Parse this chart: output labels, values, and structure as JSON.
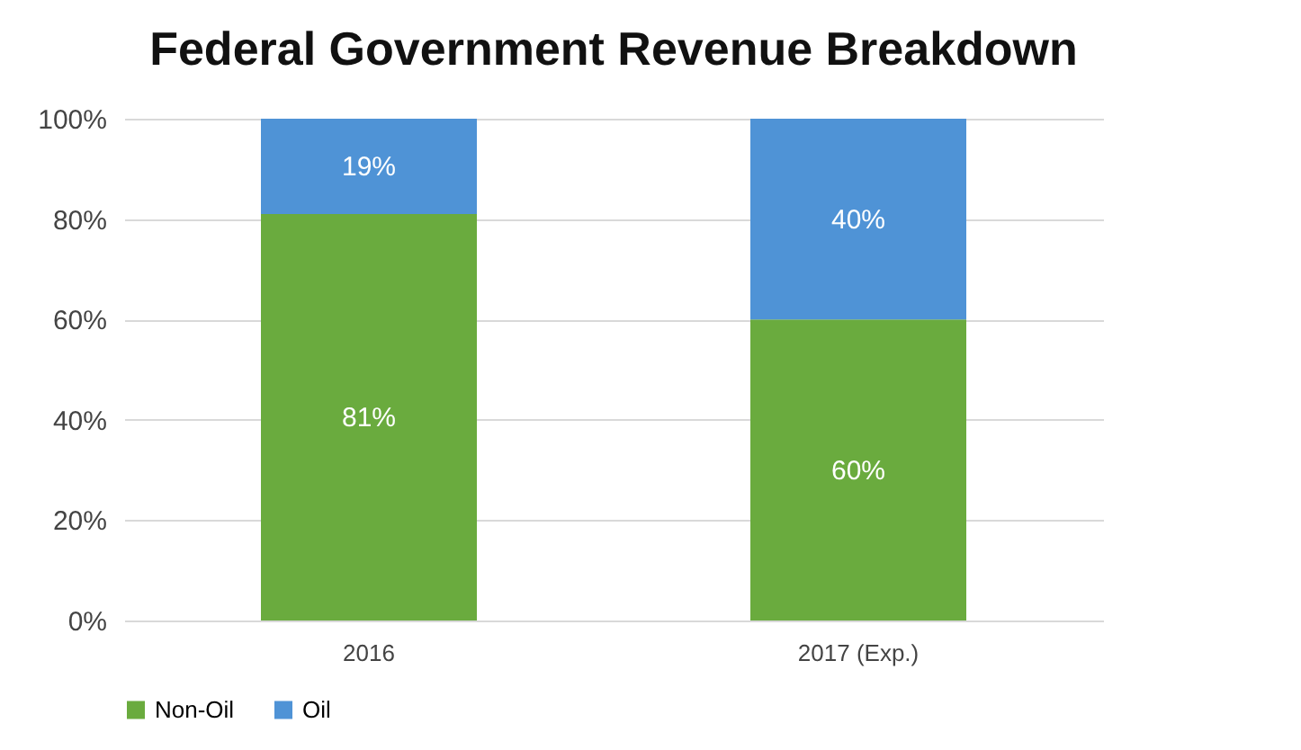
{
  "chart_data": {
    "type": "bar",
    "title": "Federal Government Revenue Breakdown",
    "categories": [
      "2016",
      "2017 (Exp.)"
    ],
    "stacked": true,
    "series": [
      {
        "name": "Non-Oil",
        "color": "#6aab3e",
        "values": [
          81,
          60
        ],
        "value_labels": [
          "81%",
          "60%"
        ]
      },
      {
        "name": "Oil",
        "color": "#4f93d6",
        "values": [
          19,
          40
        ],
        "value_labels": [
          "19%",
          "40%"
        ]
      }
    ],
    "ylim": [
      0,
      100
    ],
    "yticks": [
      {
        "value": 0,
        "label": "0%"
      },
      {
        "value": 20,
        "label": "20%"
      },
      {
        "value": 40,
        "label": "40%"
      },
      {
        "value": 60,
        "label": "60%"
      },
      {
        "value": 80,
        "label": "80%"
      },
      {
        "value": 100,
        "label": "100%"
      }
    ],
    "grid": "y",
    "legend": "bottom"
  }
}
